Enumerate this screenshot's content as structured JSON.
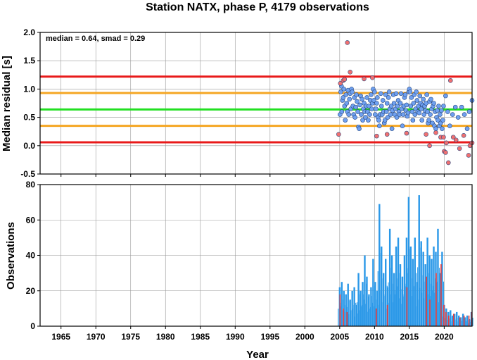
{
  "chart_data": [
    {
      "type": "scatter",
      "title": "Station NATX, phase P, 4179 observations",
      "ylabel": "Median residual [s]",
      "annotation": "median = 0.64, smad = 0.29",
      "xlim": [
        1962,
        2024
      ],
      "ylim": [
        -0.5,
        2.0
      ],
      "x_ticks": [
        1965,
        1970,
        1975,
        1980,
        1985,
        1990,
        1995,
        2000,
        2005,
        2010,
        2015,
        2020
      ],
      "y_ticks": [
        "-0.5",
        "0.0",
        "0.5",
        "1.0",
        "1.5",
        "2.0"
      ],
      "grid": true,
      "reference_lines": [
        {
          "y": 1.22,
          "color": "#e81a1a"
        },
        {
          "y": 0.93,
          "color": "#f5a623"
        },
        {
          "y": 0.64,
          "color": "#22e022"
        },
        {
          "y": 0.35,
          "color": "#f5a623"
        },
        {
          "y": 0.06,
          "color": "#e81a1a"
        }
      ],
      "series": [
        {
          "color": "#6fa0f0",
          "points": [
            [
              2005.05,
              0.55
            ],
            [
              2005.15,
              0.95
            ],
            [
              2005.25,
              1.05
            ],
            [
              2005.3,
              0.6
            ],
            [
              2005.4,
              0.8
            ],
            [
              2005.5,
              0.85
            ],
            [
              2005.6,
              1.0
            ],
            [
              2005.7,
              0.7
            ],
            [
              2005.8,
              0.45
            ],
            [
              2005.9,
              0.9
            ],
            [
              2006.0,
              0.75
            ],
            [
              2006.1,
              0.6
            ],
            [
              2006.2,
              0.98
            ],
            [
              2006.3,
              0.55
            ],
            [
              2006.4,
              0.82
            ],
            [
              2006.5,
              0.92
            ],
            [
              2006.6,
              0.65
            ],
            [
              2006.7,
              1.0
            ],
            [
              2006.8,
              0.95
            ],
            [
              2006.9,
              0.7
            ],
            [
              2007.0,
              0.55
            ],
            [
              2007.1,
              0.85
            ],
            [
              2007.2,
              0.5
            ],
            [
              2007.3,
              0.68
            ],
            [
              2007.4,
              0.9
            ],
            [
              2007.5,
              0.78
            ],
            [
              2007.6,
              0.6
            ],
            [
              2007.7,
              0.33
            ],
            [
              2007.8,
              0.3
            ],
            [
              2007.9,
              0.72
            ],
            [
              2008.0,
              0.88
            ],
            [
              2008.1,
              0.55
            ],
            [
              2008.2,
              0.82
            ],
            [
              2008.3,
              0.45
            ],
            [
              2008.4,
              0.65
            ],
            [
              2008.5,
              0.75
            ],
            [
              2008.6,
              0.6
            ],
            [
              2008.7,
              0.5
            ],
            [
              2008.8,
              0.7
            ],
            [
              2008.9,
              0.85
            ],
            [
              2009.0,
              0.6
            ],
            [
              2009.1,
              0.45
            ],
            [
              2009.2,
              0.7
            ],
            [
              2009.3,
              0.55
            ],
            [
              2009.4,
              0.8
            ],
            [
              2009.5,
              0.9
            ],
            [
              2009.6,
              0.65
            ],
            [
              2009.7,
              0.75
            ],
            [
              2009.8,
              1.0
            ],
            [
              2009.9,
              0.8
            ],
            [
              2010.0,
              0.95
            ],
            [
              2010.1,
              0.55
            ],
            [
              2010.2,
              0.65
            ],
            [
              2010.3,
              0.75
            ],
            [
              2010.4,
              0.85
            ],
            [
              2010.5,
              0.5
            ],
            [
              2010.6,
              0.45
            ],
            [
              2010.7,
              0.35
            ],
            [
              2010.8,
              0.55
            ],
            [
              2010.9,
              0.92
            ],
            [
              2011.0,
              0.7
            ],
            [
              2011.1,
              0.55
            ],
            [
              2011.2,
              0.8
            ],
            [
              2011.3,
              0.6
            ],
            [
              2011.4,
              0.4
            ],
            [
              2011.5,
              0.45
            ],
            [
              2011.6,
              0.9
            ],
            [
              2011.7,
              0.6
            ],
            [
              2011.8,
              0.75
            ],
            [
              2011.9,
              0.5
            ],
            [
              2012.0,
              0.85
            ],
            [
              2012.1,
              0.95
            ],
            [
              2012.2,
              0.65
            ],
            [
              2012.3,
              0.55
            ],
            [
              2012.4,
              0.7
            ],
            [
              2012.5,
              0.3
            ],
            [
              2012.6,
              0.62
            ],
            [
              2012.7,
              0.9
            ],
            [
              2012.8,
              0.75
            ],
            [
              2012.9,
              0.55
            ],
            [
              2013.0,
              0.65
            ],
            [
              2013.1,
              0.92
            ],
            [
              2013.2,
              0.5
            ],
            [
              2013.3,
              0.7
            ],
            [
              2013.4,
              0.8
            ],
            [
              2013.5,
              0.6
            ],
            [
              2013.6,
              0.55
            ],
            [
              2013.7,
              0.75
            ],
            [
              2013.8,
              0.92
            ],
            [
              2013.9,
              0.65
            ],
            [
              2014.0,
              0.35
            ],
            [
              2014.1,
              0.55
            ],
            [
              2014.2,
              0.7
            ],
            [
              2014.3,
              0.85
            ],
            [
              2014.4,
              0.9
            ],
            [
              2014.5,
              0.62
            ],
            [
              2014.6,
              0.72
            ],
            [
              2014.7,
              0.52
            ],
            [
              2014.8,
              0.58
            ],
            [
              2014.9,
              0.95
            ],
            [
              2015.0,
              1.0
            ],
            [
              2015.1,
              0.95
            ],
            [
              2015.2,
              0.7
            ],
            [
              2015.3,
              0.85
            ],
            [
              2015.4,
              0.6
            ],
            [
              2015.5,
              0.45
            ],
            [
              2015.6,
              0.75
            ],
            [
              2015.7,
              0.9
            ],
            [
              2015.8,
              0.55
            ],
            [
              2015.9,
              0.65
            ],
            [
              2016.0,
              0.95
            ],
            [
              2016.1,
              0.8
            ],
            [
              2016.2,
              0.6
            ],
            [
              2016.3,
              0.7
            ],
            [
              2016.4,
              0.58
            ],
            [
              2016.5,
              0.88
            ],
            [
              2016.6,
              0.75
            ],
            [
              2016.7,
              0.65
            ],
            [
              2016.8,
              0.45
            ],
            [
              2016.9,
              0.72
            ],
            [
              2017.0,
              0.82
            ],
            [
              2017.1,
              0.55
            ],
            [
              2017.2,
              0.7
            ],
            [
              2017.3,
              0.62
            ],
            [
              2017.4,
              0.75
            ],
            [
              2017.5,
              0.9
            ],
            [
              2017.6,
              0.6
            ],
            [
              2017.7,
              0.4
            ],
            [
              2017.8,
              0.45
            ],
            [
              2017.9,
              0.78
            ],
            [
              2018.0,
              0.55
            ],
            [
              2018.1,
              0.82
            ],
            [
              2018.2,
              0.65
            ],
            [
              2018.3,
              0.4
            ],
            [
              2018.4,
              0.7
            ],
            [
              2018.5,
              0.75
            ],
            [
              2018.6,
              0.35
            ],
            [
              2018.7,
              0.6
            ],
            [
              2018.8,
              0.3
            ],
            [
              2018.9,
              0.5
            ],
            [
              2019.0,
              0.62
            ],
            [
              2019.1,
              0.45
            ],
            [
              2019.2,
              0.7
            ],
            [
              2019.3,
              0.35
            ],
            [
              2019.4,
              0.55
            ],
            [
              2019.5,
              0.4
            ],
            [
              2019.6,
              0.62
            ],
            [
              2019.7,
              0.3
            ],
            [
              2019.8,
              0.45
            ],
            [
              2019.9,
              0.7
            ],
            [
              2020.2,
              0.88
            ],
            [
              2020.5,
              0.6
            ],
            [
              2020.8,
              0.35
            ],
            [
              2021.2,
              0.55
            ],
            [
              2021.6,
              0.68
            ],
            [
              2022.0,
              0.5
            ],
            [
              2022.5,
              0.68
            ],
            [
              2022.9,
              0.55
            ],
            [
              2023.3,
              0.3
            ],
            [
              2023.6,
              0.6
            ],
            [
              2024.0,
              0.8
            ]
          ]
        },
        {
          "color": "#f07070",
          "points": [
            [
              2004.85,
              0.2
            ],
            [
              2005.1,
              1.1
            ],
            [
              2005.5,
              1.15
            ],
            [
              2005.7,
              1.17
            ],
            [
              2006.1,
              1.82
            ],
            [
              2006.5,
              1.3
            ],
            [
              2008.5,
              1.18
            ],
            [
              2009.7,
              1.2
            ],
            [
              2010.3,
              0.17
            ],
            [
              2011.8,
              0.2
            ],
            [
              2014.6,
              0.22
            ],
            [
              2017.4,
              0.2
            ],
            [
              2017.9,
              0.0
            ],
            [
              2018.8,
              0.23
            ],
            [
              2019.5,
              0.15
            ],
            [
              2019.9,
              0.15
            ],
            [
              2020.0,
              -0.1
            ],
            [
              2020.2,
              -0.12
            ],
            [
              2020.3,
              0.05
            ],
            [
              2020.6,
              -0.3
            ],
            [
              2020.9,
              1.15
            ],
            [
              2021.3,
              0.15
            ],
            [
              2021.7,
              0.1
            ],
            [
              2022.2,
              -0.05
            ],
            [
              2022.8,
              0.18
            ],
            [
              2023.5,
              -0.17
            ],
            [
              2023.7,
              0.0
            ],
            [
              2024.0,
              0.05
            ]
          ]
        }
      ]
    },
    {
      "type": "bar",
      "ylabel": "Observations",
      "xlabel": "Year",
      "xlim": [
        1962,
        2024
      ],
      "ylim": [
        0,
        80
      ],
      "x_ticks": [
        1965,
        1970,
        1975,
        1980,
        1985,
        1990,
        1995,
        2000,
        2005,
        2010,
        2015,
        2020
      ],
      "y_ticks": [
        "0",
        "20",
        "40",
        "60",
        "80"
      ],
      "grid": true,
      "series": [
        {
          "color": "#2a98e8",
          "x": [
            2005.0,
            2005.3,
            2005.6,
            2005.9,
            2006.2,
            2006.5,
            2006.8,
            2007.1,
            2007.4,
            2007.7,
            2008.0,
            2008.3,
            2008.6,
            2008.9,
            2009.2,
            2009.5,
            2009.8,
            2010.1,
            2010.4,
            2010.7,
            2011.0,
            2011.3,
            2011.6,
            2011.9,
            2012.2,
            2012.5,
            2012.8,
            2013.1,
            2013.4,
            2013.7,
            2014.0,
            2014.3,
            2014.6,
            2014.9,
            2015.2,
            2015.5,
            2015.8,
            2016.1,
            2016.4,
            2016.7,
            2017.0,
            2017.3,
            2017.6,
            2017.9,
            2018.2,
            2018.5,
            2018.8,
            2019.1,
            2019.4,
            2019.7,
            2020.0,
            2020.3,
            2020.6,
            2020.9,
            2021.2,
            2021.5,
            2021.8,
            2022.1,
            2022.4,
            2022.7,
            2023.0,
            2023.3,
            2023.6,
            2023.9
          ],
          "values": [
            22,
            25,
            20,
            18,
            24,
            15,
            20,
            22,
            12,
            30,
            20,
            25,
            40,
            28,
            18,
            22,
            38,
            25,
            20,
            69,
            45,
            30,
            38,
            22,
            55,
            40,
            30,
            45,
            50,
            35,
            28,
            40,
            50,
            73,
            45,
            38,
            50,
            25,
            74,
            48,
            42,
            35,
            50,
            40,
            38,
            45,
            42,
            55,
            30,
            42,
            12,
            10,
            8,
            9,
            6,
            7,
            8,
            6,
            5,
            7,
            5,
            6,
            4,
            8
          ]
        },
        {
          "color": "#e83c3c",
          "x": [
            2005.05,
            2005.55,
            2006.05,
            2010.25,
            2011.85,
            2014.65,
            2017.45,
            2017.95,
            2018.85,
            2019.55,
            2019.95,
            2020.25,
            2020.65,
            2021.35,
            2022.25,
            2022.85,
            2023.55,
            2023.95
          ],
          "values": [
            18,
            10,
            8,
            10,
            12,
            22,
            28,
            15,
            30,
            35,
            12,
            8,
            6,
            7,
            5,
            6,
            6,
            8
          ]
        }
      ]
    }
  ]
}
